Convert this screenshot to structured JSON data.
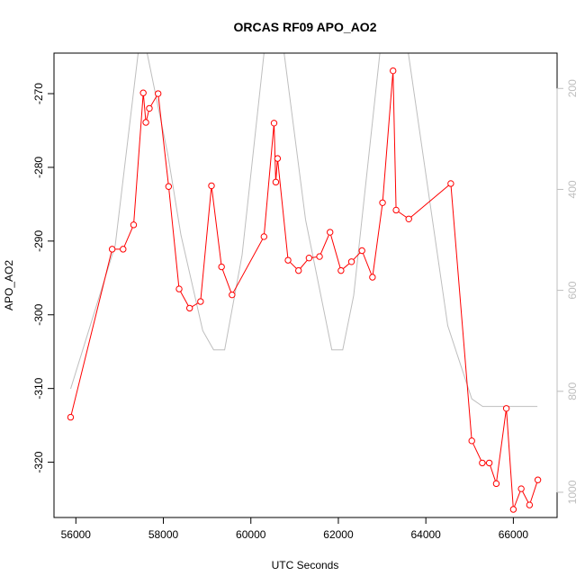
{
  "chart_data": {
    "type": "line",
    "title": "ORCAS RF09 APO_AO2",
    "xlabel": "UTC Seconds",
    "ylabel": "APO_AO2",
    "xlim": [
      55500,
      67000
    ],
    "ylim": [
      -327.5,
      -264.5
    ],
    "x_ticks": [
      56000,
      58000,
      60000,
      62000,
      64000,
      66000
    ],
    "y_ticks": [
      -320,
      -310,
      -300,
      -290,
      -280,
      -270
    ],
    "right_axis": {
      "label": "",
      "ylim": [
        1050,
        130
      ],
      "ticks": [
        200,
        400,
        600,
        800,
        1000
      ],
      "color": "#bebebe"
    },
    "series": [
      {
        "color": "#ff0000",
        "marker": "open-circle",
        "points": [
          [
            55880,
            -313.9
          ],
          [
            56830,
            -291.1
          ],
          [
            57080,
            -291.1
          ],
          [
            57320,
            -287.8
          ],
          [
            57540,
            -269.9
          ],
          [
            57600,
            -273.9
          ],
          [
            57680,
            -272.0
          ],
          [
            57880,
            -270.0
          ],
          [
            58120,
            -282.6
          ],
          [
            58360,
            -296.5
          ],
          [
            58600,
            -299.1
          ],
          [
            58850,
            -298.2
          ],
          [
            59100,
            -282.5
          ],
          [
            59330,
            -293.5
          ],
          [
            59570,
            -297.3
          ],
          [
            60300,
            -289.4
          ],
          [
            60530,
            -274.0
          ],
          [
            60570,
            -282.0
          ],
          [
            60610,
            -278.8
          ],
          [
            60850,
            -292.6
          ],
          [
            61090,
            -294.0
          ],
          [
            61330,
            -292.3
          ],
          [
            61570,
            -292.1
          ],
          [
            61810,
            -288.8
          ],
          [
            62060,
            -294.0
          ],
          [
            62300,
            -292.8
          ],
          [
            62540,
            -291.3
          ],
          [
            62780,
            -294.9
          ],
          [
            63010,
            -284.8
          ],
          [
            63250,
            -266.9
          ],
          [
            63320,
            -285.8
          ],
          [
            63610,
            -287.0
          ],
          [
            64570,
            -282.2
          ],
          [
            65050,
            -317.1
          ],
          [
            65290,
            -320.1
          ],
          [
            65450,
            -320.1
          ],
          [
            65610,
            -322.9
          ],
          [
            65840,
            -312.7
          ],
          [
            66000,
            -326.4
          ],
          [
            66180,
            -323.6
          ],
          [
            66370,
            -325.8
          ],
          [
            66560,
            -322.4
          ]
        ]
      },
      {
        "color": "#bebebe",
        "axis": "right",
        "points": [
          [
            55880,
            795
          ],
          [
            56900,
            510
          ],
          [
            57500,
            75
          ],
          [
            58100,
            330
          ],
          [
            58400,
            490
          ],
          [
            58900,
            680
          ],
          [
            59150,
            718
          ],
          [
            59400,
            718
          ],
          [
            59800,
            530
          ],
          [
            60350,
            90
          ],
          [
            60700,
            90
          ],
          [
            61250,
            460
          ],
          [
            61850,
            718
          ],
          [
            62100,
            718
          ],
          [
            62350,
            610
          ],
          [
            62950,
            130
          ],
          [
            63600,
            130
          ],
          [
            64500,
            670
          ],
          [
            65050,
            815
          ],
          [
            65300,
            830
          ],
          [
            66000,
            830
          ],
          [
            66550,
            830
          ]
        ]
      }
    ]
  }
}
